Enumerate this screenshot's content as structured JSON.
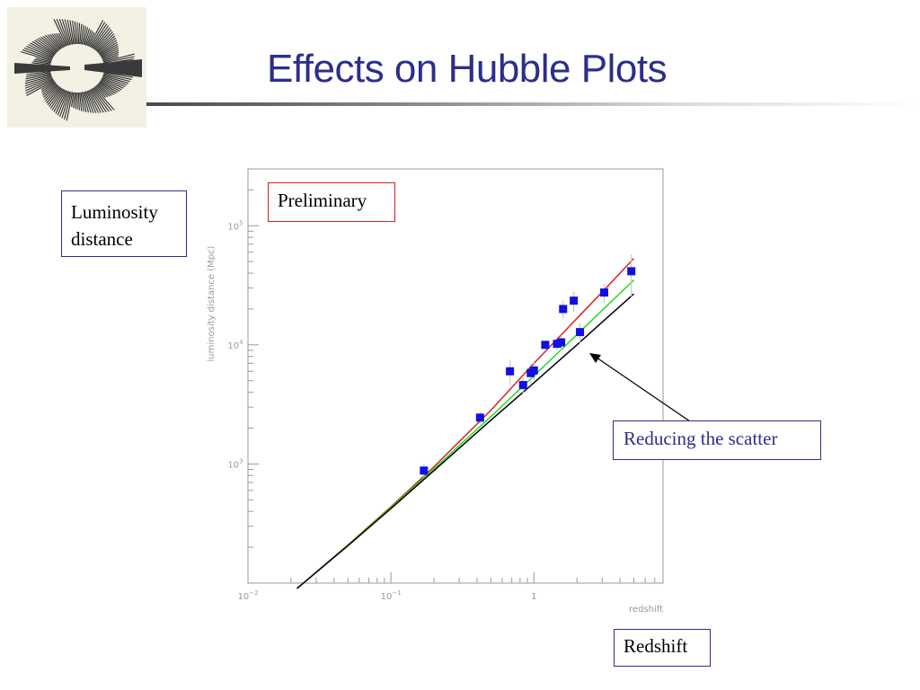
{
  "slide": {
    "title": "Effects on Hubble Plots"
  },
  "annotations": {
    "y_label": [
      "Luminosity",
      "distance"
    ],
    "x_label": "Redshift",
    "preliminary": "Preliminary",
    "scatter": "Reducing the scatter"
  },
  "colors": {
    "title": "#2b2f8a",
    "red_curve": "#e02020",
    "green_curve": "#22dd22",
    "black_curve": "#000000",
    "points": "#1010e0",
    "error_bars": "#c8c8c8",
    "frame": "#9a9a9a"
  },
  "chart_data": {
    "type": "scatter",
    "xlabel": "redshift",
    "ylabel": "luminosity distance (Mpc)",
    "x_scale": "log",
    "y_scale": "log",
    "xlim": [
      0.01,
      8
    ],
    "ylim": [
      100,
      300000
    ],
    "x_ticks": [
      {
        "value": 0.01,
        "base": "10",
        "exp": "−2"
      },
      {
        "value": 0.1,
        "base": "10",
        "exp": "−1"
      },
      {
        "value": 1,
        "base": "1",
        "exp": ""
      }
    ],
    "y_ticks": [
      {
        "value": 1000,
        "base": "10",
        "exp": "3"
      },
      {
        "value": 10000,
        "base": "10",
        "exp": "4"
      },
      {
        "value": 100000,
        "base": "10",
        "exp": "5"
      }
    ],
    "points": [
      {
        "x": 0.17,
        "y": 880,
        "err": 120
      },
      {
        "x": 0.42,
        "y": 2450,
        "err": 300
      },
      {
        "x": 0.68,
        "y": 6000,
        "err": 1400
      },
      {
        "x": 0.84,
        "y": 4600,
        "err": 700
      },
      {
        "x": 0.95,
        "y": 5800,
        "err": 1200
      },
      {
        "x": 1.0,
        "y": 6100,
        "err": 1100
      },
      {
        "x": 1.2,
        "y": 10000,
        "err": 800
      },
      {
        "x": 1.45,
        "y": 10200,
        "err": 1200
      },
      {
        "x": 1.55,
        "y": 10500,
        "err": 1500
      },
      {
        "x": 1.6,
        "y": 20000,
        "err": 3500
      },
      {
        "x": 1.9,
        "y": 23500,
        "err": 4500
      },
      {
        "x": 2.1,
        "y": 12800,
        "err": 2500
      },
      {
        "x": 3.1,
        "y": 27500,
        "err": 5000
      },
      {
        "x": 4.8,
        "y": 41500,
        "err": 16000
      }
    ],
    "series": [
      {
        "x": [
          0.022,
          0.05,
          0.1,
          0.2,
          0.5,
          1,
          2,
          3,
          5
        ],
        "y": [
          90,
          209,
          437,
          948,
          2826,
          7000,
          16700,
          27700,
          53200
        ]
      },
      {
        "x": [
          0.022,
          0.05,
          0.1,
          0.2,
          0.5,
          1,
          2,
          3,
          5
        ],
        "y": [
          90,
          208,
          430,
          910,
          2500,
          5500,
          12200,
          19500,
          35000
        ]
      },
      {
        "x": [
          0.022,
          0.05,
          0.1,
          0.2,
          0.5,
          1,
          2,
          3,
          5
        ],
        "y": [
          90,
          206,
          422,
          880,
          2330,
          4800,
          10000,
          15500,
          26800
        ]
      }
    ]
  }
}
